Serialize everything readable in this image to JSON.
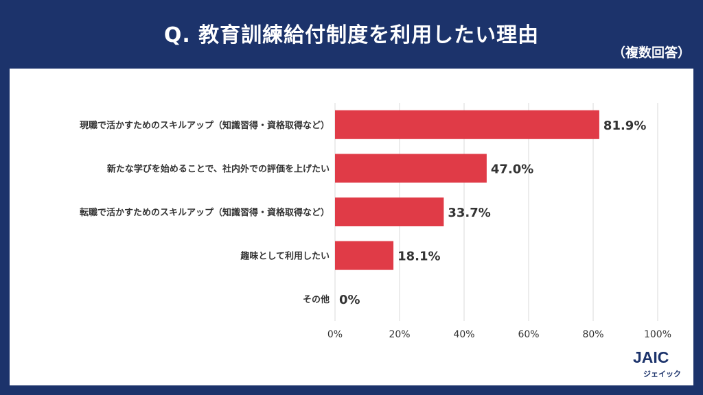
{
  "header": {
    "title": "Q. 教育訓練給付制度を利用したい理由",
    "subtitle": "（複数回答）"
  },
  "logo": {
    "text": "JAIC",
    "sub": "ジェイック"
  },
  "colors": {
    "background": "#1c336b",
    "bar": "#e03b47",
    "grid": "#d9d9d9",
    "text": "#333333"
  },
  "chart_data": {
    "type": "bar",
    "orientation": "horizontal",
    "categories": [
      "現職で活かすためのスキルアップ（知識習得・資格取得など）",
      "新たな学びを始めることで、社内外での評価を上げたい",
      "転職で活かすためのスキルアップ（知識習得・資格取得など）",
      "趣味として利用したい",
      "その他"
    ],
    "values": [
      81.9,
      47.0,
      33.7,
      18.1,
      0
    ],
    "value_labels": [
      "81.9%",
      "47.0%",
      "33.7%",
      "18.1%",
      "0%"
    ],
    "xlim": [
      0,
      100
    ],
    "xticks": [
      "0%",
      "20%",
      "40%",
      "60%",
      "80%",
      "100%"
    ],
    "grid": true,
    "legend": "none"
  }
}
